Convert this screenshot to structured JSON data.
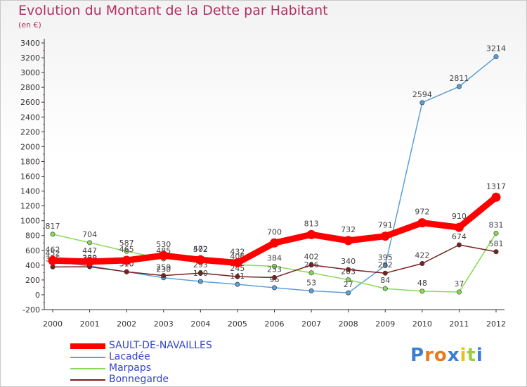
{
  "title": "Evolution du Montant de la Dette par Habitant",
  "subtitle": "(en €)",
  "logo": "Proxiti",
  "chart_data": {
    "type": "line",
    "x": [
      "2000",
      "2001",
      "2002",
      "2003",
      "2004",
      "2005",
      "2006",
      "2007",
      "2008",
      "2009",
      "2010",
      "2011",
      "2012"
    ],
    "ylim": [
      -200,
      3400
    ],
    "yticks": [
      -200,
      0,
      200,
      400,
      600,
      800,
      1000,
      1200,
      1400,
      1600,
      1800,
      2000,
      2200,
      2400,
      2600,
      2800,
      3000,
      3200,
      3400
    ],
    "grid": false,
    "legend_position": "bottom-left",
    "series": [
      {
        "name": "SAULT-DE-NAVAILLES",
        "color": "#ff0000",
        "values": [
          462,
          447,
          465,
          530,
          472,
          432,
          700,
          813,
          732,
          791,
          972,
          910,
          1317
        ]
      },
      {
        "name": "Lacadée",
        "color": "#5aa0d8",
        "values": [
          452,
          389,
          310,
          230,
          180,
          141,
          96,
          53,
          27,
          395,
          2594,
          2811,
          3214
        ]
      },
      {
        "name": "Marpaps",
        "color": "#88d858",
        "values": [
          817,
          704,
          587,
          485,
          502,
          406,
          384,
          296,
          203,
          84,
          48,
          37,
          831
        ]
      },
      {
        "name": "Bonnegarde",
        "color": "#7a2020",
        "values": [
          376,
          378,
          310,
          259,
          293,
          245,
          233,
          402,
          340,
          292,
          422,
          674,
          581
        ]
      }
    ]
  }
}
